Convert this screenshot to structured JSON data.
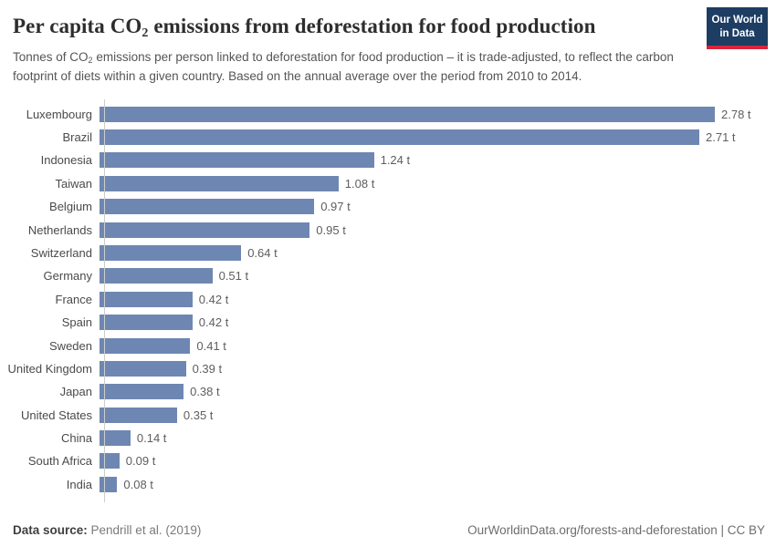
{
  "header": {
    "title": {
      "pre": "Per capita CO",
      "sub": "2",
      "post": " emissions from deforestation for food production"
    },
    "subtitle": {
      "pre": "Tonnes of CO",
      "sub": "2",
      "post": " emissions per person linked to deforestation for food production – it is trade-adjusted, to reflect the carbon footprint of diets within a given country. Based on the annual average over the period from 2010 to 2014."
    },
    "logo": {
      "line1": "Our World",
      "line2": "in Data"
    }
  },
  "chart_data": {
    "type": "bar",
    "orientation": "horizontal",
    "categories": [
      "Luxembourg",
      "Brazil",
      "Indonesia",
      "Taiwan",
      "Belgium",
      "Netherlands",
      "Switzerland",
      "Germany",
      "France",
      "Spain",
      "Sweden",
      "United Kingdom",
      "Japan",
      "United States",
      "China",
      "South Africa",
      "India"
    ],
    "values": [
      2.78,
      2.71,
      1.24,
      1.08,
      0.97,
      0.95,
      0.64,
      0.51,
      0.42,
      0.42,
      0.41,
      0.39,
      0.38,
      0.35,
      0.14,
      0.09,
      0.08
    ],
    "value_labels": [
      "2.78 t",
      "2.71 t",
      "1.24 t",
      "1.08 t",
      "0.97 t",
      "0.95 t",
      "0.64 t",
      "0.51 t",
      "0.42 t",
      "0.42 t",
      "0.41 t",
      "0.39 t",
      "0.38 t",
      "0.35 t",
      "0.14 t",
      "0.09 t",
      "0.08 t"
    ],
    "unit": "t",
    "xlim": [
      0,
      2.78
    ],
    "grid": false,
    "legend": "none",
    "value_label_position": "outside-end",
    "bar_color": "#6e87b2",
    "axis_color": "#cccccc"
  },
  "footer": {
    "source_label": "Data source:",
    "source_value": " Pendrill et al. (2019)",
    "link": "OurWorldinData.org/forests-and-deforestation | CC BY"
  }
}
